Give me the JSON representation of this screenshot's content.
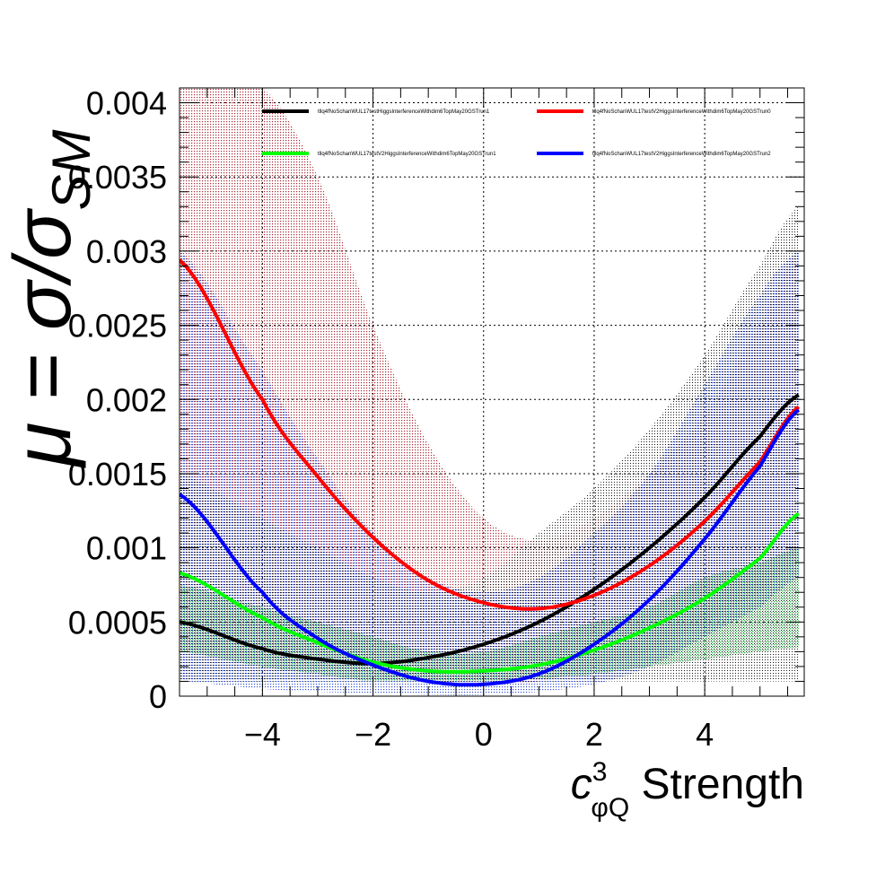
{
  "chart_data": {
    "type": "line",
    "xlabel_main": "c",
    "xlabel_sup": "3",
    "xlabel_sub": "φQ",
    "xlabel_rest": " Strength",
    "ylabel_mu": "μ",
    "ylabel_eq": " = ",
    "ylabel_sigma": "σ/σ",
    "ylabel_sub": "SM",
    "xlim": [
      -5.5,
      5.8
    ],
    "ylim": [
      0,
      0.0041
    ],
    "grid": true,
    "legend_position": "top",
    "xticks": [
      "−4",
      "−2",
      "0",
      "2",
      "4"
    ],
    "xtick_values": [
      -4,
      -2,
      0,
      2,
      4
    ],
    "yticks": [
      "0",
      "0.0005",
      "0.001",
      "0.0015",
      "0.002",
      "0.0025",
      "0.003",
      "0.0035",
      "0.004"
    ],
    "ytick_values": [
      0,
      0.0005,
      0.001,
      0.0015,
      0.002,
      0.0025,
      0.003,
      0.0035,
      0.004
    ],
    "series": [
      {
        "name": "tllq4fNoSchanWUL17testHiggsInterferenceWithdim6TopMay20GSTrun1",
        "color": "#000000",
        "band_color": "#555555",
        "x": [
          -5.5,
          -4,
          -3,
          -2,
          -1,
          0,
          1,
          2,
          3,
          4,
          5,
          5.7
        ],
        "y": [
          0.0005,
          0.00032,
          0.00025,
          0.00022,
          0.00026,
          0.00035,
          0.0005,
          0.00072,
          0.001,
          0.00134,
          0.00175,
          0.00203
        ],
        "band_lo": [
          0.0001,
          0.0001,
          0.0001,
          0.0001,
          0.0001,
          0.0001,
          0.0001,
          0.0001,
          0.0001,
          0.0001,
          0.0001,
          0.0001
        ],
        "band_hi": [
          0.0015,
          0.0012,
          0.001,
          0.0008,
          0.0007,
          0.0008,
          0.0011,
          0.0014,
          0.0018,
          0.0023,
          0.0029,
          0.0033
        ]
      },
      {
        "name": "tllq4fNoSchanWUL17testV2HiggsInterferenceWithdim6TopMay20GSTrun0",
        "color": "#ff0000",
        "band_color": "#c04040",
        "x": [
          -5.5,
          -4,
          -3,
          -2,
          -1,
          0,
          1,
          2,
          3,
          4,
          5,
          5.7
        ],
        "y": [
          0.00294,
          0.002,
          0.00148,
          0.00107,
          0.00078,
          0.00063,
          0.00059,
          0.00068,
          0.00088,
          0.00118,
          0.00158,
          0.00195
        ],
        "band_lo": [
          0.0003,
          0.00025,
          0.0002,
          0.00015,
          0.0001,
          0.0001,
          0.0001,
          0.0002,
          0.0003,
          0.0005,
          0.0007,
          0.0009
        ],
        "band_hi": [
          0.0041,
          0.0041,
          0.0035,
          0.0025,
          0.0017,
          0.0012,
          0.00105,
          0.0012,
          0.0015,
          0.0019,
          0.0025,
          0.003
        ]
      },
      {
        "name": "tllq4fNoSchanWUL17testV2HiggsInterferenceWithdim6TopMay20GSTrun1",
        "color": "#00ff00",
        "band_color": "#44cc66",
        "x": [
          -5.5,
          -4,
          -3,
          -2,
          -1,
          0,
          1,
          2,
          3,
          4,
          5,
          5.7
        ],
        "y": [
          0.00083,
          0.00053,
          0.00036,
          0.00023,
          0.00017,
          0.00017,
          0.00021,
          0.00031,
          0.00046,
          0.00066,
          0.00093,
          0.00123
        ],
        "band_lo": [
          0.0003,
          0.0002,
          0.00015,
          0.0001,
          0.0001,
          0.0001,
          0.00012,
          0.00015,
          0.0002,
          0.00025,
          0.0003,
          0.00033
        ],
        "band_hi": [
          0.00075,
          0.0006,
          0.0005,
          0.0004,
          0.0003,
          0.0003,
          0.0004,
          0.0005,
          0.0006,
          0.0008,
          0.0009,
          0.001
        ]
      },
      {
        "name": "tllq4fNoSchanWUL17testV2HiggsInterferenceWithdim6TopMay20GSTrun2",
        "color": "#0000ff",
        "band_color": "#4060e0",
        "x": [
          -5.5,
          -4,
          -3,
          -2,
          -1,
          0,
          1,
          2,
          3,
          4,
          5,
          5.7
        ],
        "y": [
          0.00136,
          0.0007,
          0.00039,
          0.00021,
          0.0001,
          8e-05,
          0.00015,
          0.00035,
          0.00065,
          0.00106,
          0.00155,
          0.00193
        ],
        "band_lo": [
          0.0001,
          5e-05,
          3e-05,
          2e-05,
          1e-05,
          1e-05,
          3e-05,
          8e-05,
          0.0002,
          0.0004,
          0.0006,
          0.0008
        ],
        "band_hi": [
          0.003,
          0.0022,
          0.0016,
          0.0011,
          0.0008,
          0.0007,
          0.0008,
          0.0011,
          0.0015,
          0.0021,
          0.0027,
          0.003
        ]
      }
    ]
  }
}
